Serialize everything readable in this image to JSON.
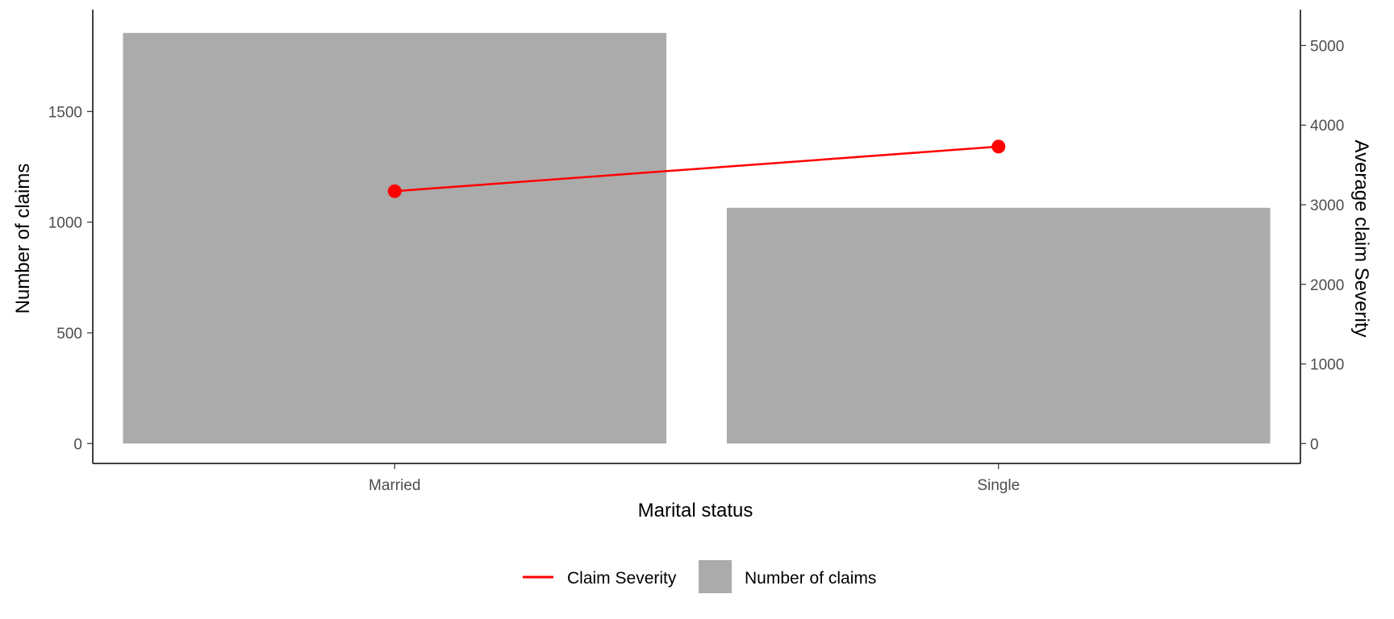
{
  "chart_data": {
    "type": "bar",
    "categories": [
      "Married",
      "Single"
    ],
    "series": [
      {
        "name": "Number of claims",
        "type": "bar",
        "axis": "left",
        "color": "#ababab",
        "values": [
          1855,
          1065
        ]
      },
      {
        "name": "Claim Severity",
        "type": "line",
        "axis": "right",
        "color": "#ff0000",
        "values": [
          3170,
          3730
        ]
      }
    ],
    "xlabel": "Marital status",
    "ylabel": "Number of claims",
    "ylabel_right": "Average claim Severity",
    "ylim": [
      -90,
      1960
    ],
    "ylim_right": [
      -250,
      5450
    ],
    "yticks": [
      0,
      500,
      1000,
      1500
    ],
    "yticks_right": [
      0,
      1000,
      2000,
      3000,
      4000,
      5000
    ],
    "grid": false,
    "legend_position": "bottom",
    "legend": [
      {
        "label": "Claim Severity",
        "kind": "line",
        "color": "#ff0000"
      },
      {
        "label": "Number of claims",
        "kind": "box",
        "color": "#ababab"
      }
    ]
  }
}
